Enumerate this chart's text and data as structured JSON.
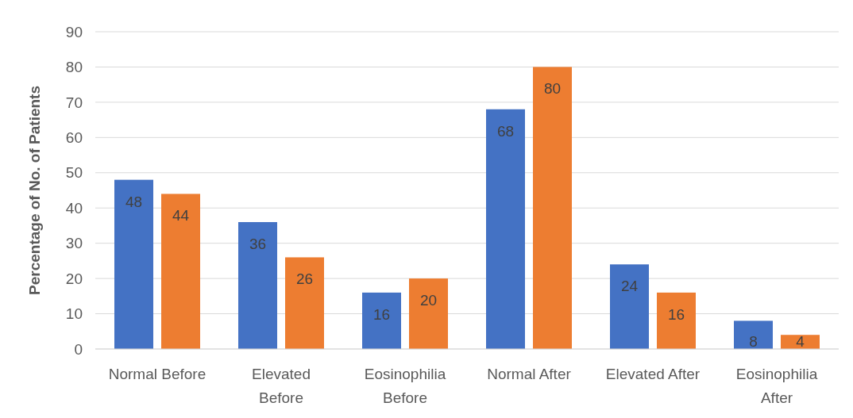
{
  "chart_data": {
    "type": "bar",
    "ylabel": "Percentage of No. of Patients",
    "categories": [
      "Normal Before",
      "Elevated Before",
      "Eosinophilia Before",
      "Normal After",
      "Elevated After",
      "Eosinophilia After"
    ],
    "series": [
      {
        "color": "#4472c4",
        "values": [
          48,
          36,
          16,
          68,
          24,
          8
        ]
      },
      {
        "color": "#ed7d31",
        "values": [
          44,
          26,
          20,
          80,
          16,
          4
        ]
      }
    ],
    "ylim": [
      0,
      90
    ],
    "yticks": [
      0,
      10,
      20,
      30,
      40,
      50,
      60,
      70,
      80,
      90
    ],
    "grid": "y",
    "data_labels": true
  }
}
